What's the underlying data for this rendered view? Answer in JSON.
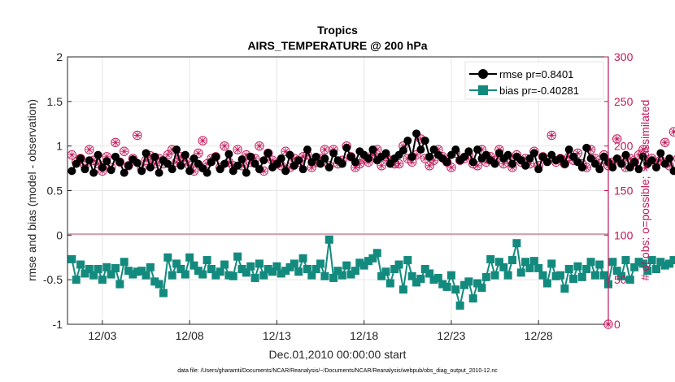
{
  "chart_data": {
    "type": "line",
    "title": "Tropics",
    "subtitle": "AIRS_TEMPERATURE @ 200 hPa",
    "xlabel": "Dec.01,2010 00:00:00 start",
    "ylabel": "rmse and bias (model - observation)",
    "ylabel_right": "# of obs: o=possible; ∗=assimilated",
    "xlim": [
      1,
      32
    ],
    "ylim": [
      -1,
      2
    ],
    "ylim_right": [
      0,
      300
    ],
    "x_ticks": [
      {
        "value": 3,
        "label": "12/03"
      },
      {
        "value": 8,
        "label": "12/08"
      },
      {
        "value": 13,
        "label": "12/13"
      },
      {
        "value": 18,
        "label": "12/18"
      },
      {
        "value": 23,
        "label": "12/23"
      },
      {
        "value": 28,
        "label": "12/28"
      }
    ],
    "y_ticks_left": [
      "-1",
      "-0.5",
      "0",
      "0.5",
      "1",
      "1.5",
      "2"
    ],
    "y_ticks_right": [
      "0",
      "50",
      "100",
      "150",
      "200",
      "250",
      "300"
    ],
    "footnote": "data file: /Users/gharamti/Documents/NCAR/Reanalysis/~/Documents/NCAR/Reanalysis/webpub/obs_diag_output_2010-12.nc",
    "legend_position": "top-right",
    "x_start": 1.25,
    "x_step": 0.25,
    "series": [
      {
        "name": "rmse pr=0.8401",
        "axis": "left",
        "color": "#000000",
        "marker": "circle",
        "values": [
          0.72,
          0.8,
          0.86,
          0.74,
          0.84,
          0.7,
          0.9,
          0.76,
          0.83,
          0.73,
          0.88,
          0.82,
          0.7,
          0.78,
          0.85,
          0.81,
          0.72,
          0.92,
          0.76,
          0.88,
          0.7,
          0.84,
          0.8,
          0.74,
          0.96,
          0.78,
          0.9,
          0.72,
          0.86,
          0.8,
          0.75,
          0.7,
          0.82,
          0.88,
          0.74,
          0.8,
          0.91,
          0.72,
          0.78,
          0.85,
          0.7,
          0.88,
          0.8,
          0.74,
          0.84,
          0.92,
          0.76,
          0.8,
          0.86,
          0.72,
          0.9,
          0.78,
          0.84,
          0.74,
          0.96,
          0.82,
          0.88,
          0.8,
          0.86,
          0.76,
          0.92,
          0.84,
          0.8,
          0.98,
          0.88,
          0.82,
          0.94,
          0.9,
          0.86,
          0.96,
          0.84,
          0.88,
          0.92,
          0.8,
          0.86,
          0.9,
          0.95,
          1.06,
          0.88,
          1.14,
          0.96,
          1.06,
          0.88,
          0.96,
          0.9,
          0.86,
          0.82,
          0.9,
          0.96,
          0.84,
          0.88,
          0.94,
          0.82,
          0.96,
          0.86,
          0.9,
          0.84,
          0.8,
          0.92,
          0.86,
          0.9,
          0.8,
          0.88,
          0.84,
          0.78,
          0.86,
          0.92,
          0.74,
          0.88,
          0.82,
          0.9,
          0.84,
          0.86,
          0.8,
          0.96,
          0.88,
          0.82,
          0.76,
          0.98,
          0.86,
          0.8,
          0.74,
          0.88,
          0.82,
          0.76,
          0.86,
          0.8,
          0.9,
          0.76,
          0.82,
          0.74,
          0.88,
          0.8,
          0.84,
          0.76,
          0.92,
          0.8,
          0.86,
          0.72
        ]
      },
      {
        "name": "bias pr=-0.40281",
        "axis": "left",
        "color": "#138a7e",
        "marker": "square",
        "values": [
          -0.27,
          -0.5,
          -0.33,
          -0.43,
          -0.38,
          -0.45,
          -0.38,
          -0.5,
          -0.36,
          -0.44,
          -0.37,
          -0.55,
          -0.3,
          -0.4,
          -0.44,
          -0.41,
          -0.4,
          -0.45,
          -0.36,
          -0.52,
          -0.55,
          -0.65,
          -0.25,
          -0.45,
          -0.32,
          -0.38,
          -0.44,
          -0.25,
          -0.34,
          -0.4,
          -0.44,
          -0.28,
          -0.38,
          -0.45,
          -0.41,
          -0.33,
          -0.45,
          -0.46,
          -0.24,
          -0.38,
          -0.42,
          -0.35,
          -0.48,
          -0.32,
          -0.45,
          -0.38,
          -0.41,
          -0.35,
          -0.43,
          -0.4,
          -0.36,
          -0.32,
          -0.41,
          -0.26,
          -0.38,
          -0.45,
          -0.38,
          -0.32,
          -0.46,
          -0.05,
          -0.48,
          -0.4,
          -0.45,
          -0.34,
          -0.44,
          -0.4,
          -0.31,
          -0.34,
          -0.29,
          -0.26,
          -0.2,
          -0.46,
          -0.41,
          -0.54,
          -0.38,
          -0.33,
          -0.61,
          -0.28,
          -0.46,
          -0.53,
          -0.49,
          -0.38,
          -0.43,
          -0.5,
          -0.48,
          -0.55,
          -0.58,
          -0.45,
          -0.61,
          -0.79,
          -0.56,
          -0.52,
          -0.71,
          -0.54,
          -0.59,
          -0.47,
          -0.27,
          -0.45,
          -0.3,
          -0.36,
          -0.45,
          -0.28,
          -0.09,
          -0.42,
          -0.3,
          -0.37,
          -0.29,
          -0.37,
          -0.45,
          -0.54,
          -0.32,
          -0.46,
          -0.45,
          -0.6,
          -0.38,
          -0.49,
          -0.35,
          -0.47,
          -0.38,
          -0.3,
          -0.45,
          -0.33,
          -0.45,
          -0.55,
          -0.3,
          -0.4,
          -0.46,
          -0.28,
          -0.5,
          -0.36,
          -0.3,
          -0.32,
          -0.4,
          -0.28,
          -0.38,
          -0.3,
          -0.34,
          -0.32,
          -0.28
        ]
      },
      {
        "name": "obs possible",
        "axis": "right",
        "color": "#c2185b",
        "marker": "open-circle",
        "values": [
          190,
          182,
          186,
          178,
          196,
          184,
          180,
          172,
          188,
          176,
          204,
          182,
          194,
          178,
          186,
          212,
          175,
          184,
          189,
          180,
          186,
          180,
          190,
          196,
          182,
          188,
          184,
          178,
          172,
          192,
          206,
          180,
          186,
          188,
          176,
          200,
          182,
          178,
          196,
          178,
          190,
          182,
          186,
          200,
          172,
          192,
          184,
          180,
          178,
          194,
          176,
          186,
          182,
          188,
          190,
          176,
          182,
          186,
          196,
          178,
          196,
          180,
          184,
          200,
          188,
          176,
          180,
          186,
          182,
          190,
          196,
          178,
          188,
          184,
          180,
          180,
          200,
          186,
          182,
          190,
          208,
          186,
          178,
          184,
          196,
          188,
          182,
          176,
          192,
          184,
          186,
          190,
          180,
          178,
          196,
          182,
          188,
          184,
          196,
          180,
          186,
          176,
          190,
          182,
          186,
          180,
          194,
          178,
          188,
          184,
          212,
          182,
          186,
          180,
          188,
          184,
          192,
          180,
          176,
          196,
          186,
          180,
          190,
          178,
          182,
          208,
          184,
          176,
          186,
          182,
          190,
          196,
          182,
          186,
          180,
          184,
          204,
          178,
          216,
          186,
          182
        ]
      },
      {
        "name": "obs assimilated",
        "axis": "right",
        "color": "#c2185b",
        "marker": "asterisk",
        "values": [
          190,
          182,
          186,
          178,
          196,
          184,
          180,
          172,
          188,
          176,
          204,
          182,
          194,
          178,
          186,
          212,
          175,
          184,
          189,
          180,
          186,
          180,
          190,
          196,
          182,
          188,
          184,
          178,
          172,
          192,
          206,
          180,
          186,
          188,
          176,
          200,
          182,
          178,
          196,
          178,
          190,
          182,
          186,
          200,
          172,
          192,
          184,
          180,
          178,
          194,
          176,
          186,
          182,
          188,
          190,
          176,
          182,
          186,
          196,
          178,
          196,
          180,
          184,
          200,
          188,
          176,
          180,
          186,
          182,
          190,
          196,
          178,
          188,
          184,
          180,
          180,
          200,
          186,
          182,
          190,
          208,
          186,
          178,
          184,
          196,
          188,
          182,
          176,
          192,
          184,
          186,
          190,
          180,
          178,
          196,
          182,
          188,
          184,
          196,
          180,
          186,
          176,
          190,
          182,
          186,
          180,
          194,
          178,
          188,
          184,
          212,
          182,
          186,
          180,
          188,
          184,
          192,
          180,
          176,
          196,
          186,
          180,
          190,
          178,
          182,
          208,
          184,
          176,
          186,
          182,
          190,
          196,
          182,
          186,
          180,
          184,
          204,
          178,
          216,
          186,
          182
        ]
      }
    ]
  }
}
